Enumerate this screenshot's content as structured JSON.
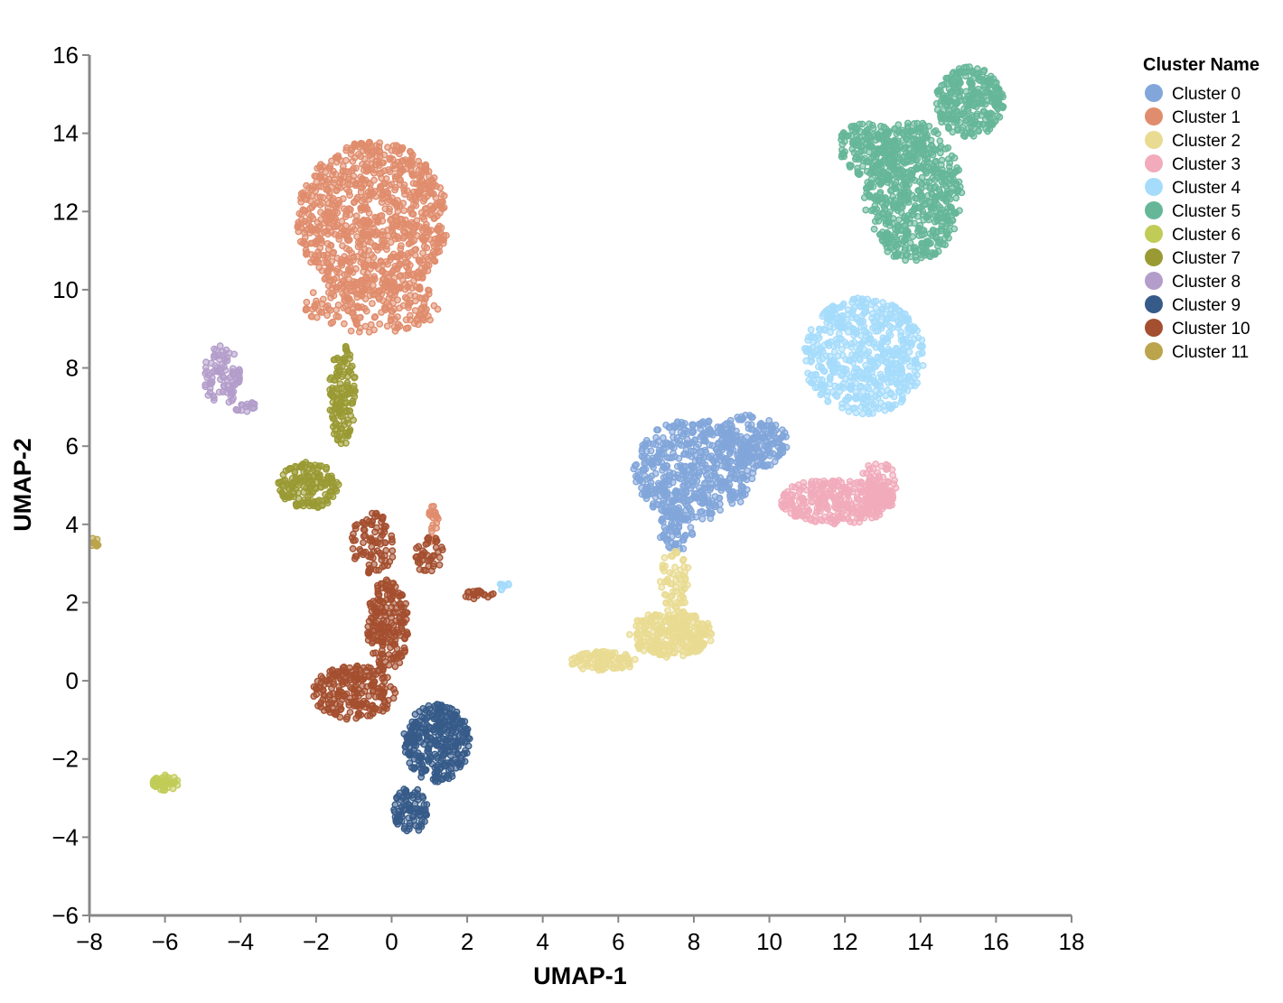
{
  "chart_data": {
    "type": "scatter",
    "xlabel": "UMAP-1",
    "ylabel": "UMAP-2",
    "xlim": [
      -8,
      18
    ],
    "ylim": [
      -6,
      16
    ],
    "x_ticks": [
      -8,
      -6,
      -4,
      -2,
      0,
      2,
      4,
      6,
      8,
      10,
      12,
      14,
      16,
      18
    ],
    "y_ticks": [
      -6,
      -4,
      -2,
      0,
      2,
      4,
      6,
      8,
      10,
      12,
      14,
      16
    ],
    "x_tick_labels": [
      "−8",
      "−6",
      "−4",
      "−2",
      "0",
      "2",
      "4",
      "6",
      "8",
      "10",
      "12",
      "14",
      "16",
      "18"
    ],
    "y_tick_labels": [
      "−6",
      "−4",
      "−2",
      "0",
      "2",
      "4",
      "6",
      "8",
      "10",
      "12",
      "14",
      "16"
    ],
    "grid": false,
    "legend": {
      "title": "Cluster Name",
      "placement": "top-right"
    },
    "series": [
      {
        "name": "Cluster 0",
        "color": "#82a6da",
        "blobs": [
          {
            "cx": 8.0,
            "cy": 5.4,
            "rx": 1.6,
            "ry": 1.3,
            "n": 520
          },
          {
            "cx": 9.5,
            "cy": 6.1,
            "rx": 1.0,
            "ry": 0.7,
            "n": 200
          },
          {
            "cx": 7.5,
            "cy": 3.8,
            "rx": 0.5,
            "ry": 0.5,
            "n": 60
          }
        ]
      },
      {
        "name": "Cluster 1",
        "color": "#e08d6d",
        "blobs": [
          {
            "cx": -0.5,
            "cy": 11.8,
            "rx": 2.0,
            "ry": 2.0,
            "n": 900
          },
          {
            "cx": -0.5,
            "cy": 9.6,
            "rx": 1.8,
            "ry": 0.7,
            "n": 200
          },
          {
            "cx": 1.1,
            "cy": 4.0,
            "rx": 0.15,
            "ry": 0.5,
            "n": 25
          }
        ]
      },
      {
        "name": "Cluster 2",
        "color": "#e9db91",
        "blobs": [
          {
            "cx": 7.4,
            "cy": 1.2,
            "rx": 1.1,
            "ry": 0.6,
            "n": 260
          },
          {
            "cx": 5.6,
            "cy": 0.5,
            "rx": 0.9,
            "ry": 0.25,
            "n": 90
          },
          {
            "cx": 7.5,
            "cy": 2.6,
            "rx": 0.4,
            "ry": 0.8,
            "n": 60
          }
        ]
      },
      {
        "name": "Cluster 3",
        "color": "#f1abbb",
        "blobs": [
          {
            "cx": 11.8,
            "cy": 4.6,
            "rx": 1.5,
            "ry": 0.6,
            "n": 300
          },
          {
            "cx": 12.9,
            "cy": 5.0,
            "rx": 0.5,
            "ry": 0.6,
            "n": 80
          }
        ]
      },
      {
        "name": "Cluster 4",
        "color": "#a6dcfb",
        "blobs": [
          {
            "cx": 12.5,
            "cy": 8.3,
            "rx": 1.6,
            "ry": 1.5,
            "n": 560
          },
          {
            "cx": 3.0,
            "cy": 2.4,
            "rx": 0.2,
            "ry": 0.1,
            "n": 10
          }
        ]
      },
      {
        "name": "Cluster 5",
        "color": "#66b799",
        "blobs": [
          {
            "cx": 13.8,
            "cy": 12.5,
            "rx": 1.3,
            "ry": 1.8,
            "n": 650
          },
          {
            "cx": 15.3,
            "cy": 14.8,
            "rx": 0.9,
            "ry": 0.9,
            "n": 280
          },
          {
            "cx": 12.6,
            "cy": 13.6,
            "rx": 0.8,
            "ry": 0.7,
            "n": 150
          }
        ]
      },
      {
        "name": "Cluster 6",
        "color": "#c1cc58",
        "blobs": [
          {
            "cx": -6.0,
            "cy": -2.6,
            "rx": 0.35,
            "ry": 0.2,
            "n": 45
          }
        ]
      },
      {
        "name": "Cluster 7",
        "color": "#9a9a34",
        "blobs": [
          {
            "cx": -2.2,
            "cy": 5.0,
            "rx": 0.8,
            "ry": 0.6,
            "n": 160
          },
          {
            "cx": -1.3,
            "cy": 7.3,
            "rx": 0.35,
            "ry": 1.3,
            "n": 140
          }
        ]
      },
      {
        "name": "Cluster 8",
        "color": "#b39dca",
        "blobs": [
          {
            "cx": -4.5,
            "cy": 7.8,
            "rx": 0.5,
            "ry": 0.8,
            "n": 90
          },
          {
            "cx": -3.9,
            "cy": 7.0,
            "rx": 0.35,
            "ry": 0.15,
            "n": 15
          }
        ]
      },
      {
        "name": "Cluster 9",
        "color": "#365b89",
        "blobs": [
          {
            "cx": 1.2,
            "cy": -1.6,
            "rx": 0.9,
            "ry": 1.0,
            "n": 320
          },
          {
            "cx": 0.5,
            "cy": -3.3,
            "rx": 0.45,
            "ry": 0.6,
            "n": 90
          }
        ]
      },
      {
        "name": "Cluster 10",
        "color": "#a44f2f",
        "blobs": [
          {
            "cx": -1.0,
            "cy": -0.3,
            "rx": 1.1,
            "ry": 0.7,
            "n": 220
          },
          {
            "cx": -0.1,
            "cy": 1.4,
            "rx": 0.55,
            "ry": 1.2,
            "n": 200
          },
          {
            "cx": -0.5,
            "cy": 3.5,
            "rx": 0.6,
            "ry": 0.8,
            "n": 90
          },
          {
            "cx": 1.0,
            "cy": 3.2,
            "rx": 0.4,
            "ry": 0.5,
            "n": 40
          },
          {
            "cx": 2.3,
            "cy": 2.2,
            "rx": 0.4,
            "ry": 0.12,
            "n": 20
          }
        ]
      },
      {
        "name": "Cluster 11",
        "color": "#bba44b",
        "blobs": [
          {
            "cx": -7.85,
            "cy": 3.55,
            "rx": 0.12,
            "ry": 0.12,
            "n": 10
          }
        ]
      }
    ]
  }
}
